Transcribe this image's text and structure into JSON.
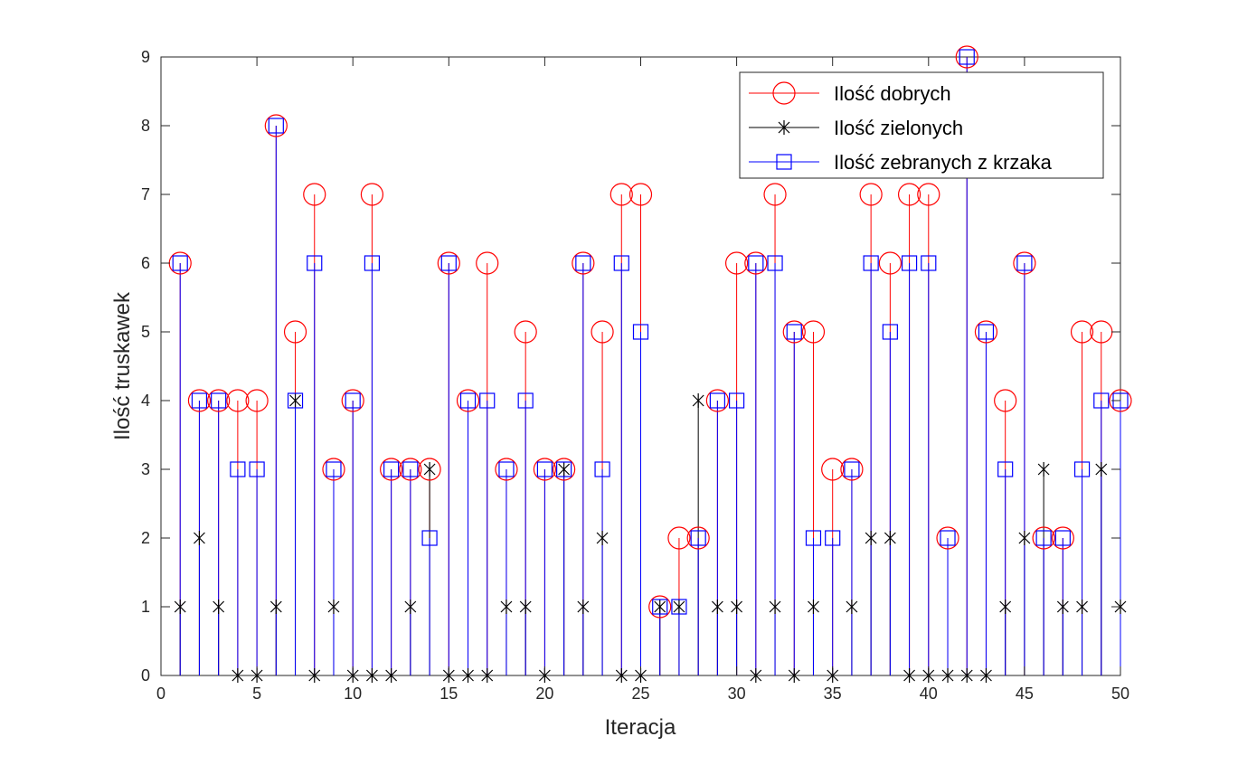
{
  "chart_data": {
    "type": "stem",
    "xlabel": "Iteracja",
    "ylabel": "Ilość truskawek",
    "xlim": [
      0,
      50
    ],
    "ylim": [
      0,
      9
    ],
    "xticks": [
      0,
      5,
      10,
      15,
      20,
      25,
      30,
      35,
      40,
      45,
      50
    ],
    "yticks": [
      0,
      1,
      2,
      3,
      4,
      5,
      6,
      7,
      8,
      9
    ],
    "grid": false,
    "legend_position": "top-right",
    "x": [
      1,
      2,
      3,
      4,
      5,
      6,
      7,
      8,
      9,
      10,
      11,
      12,
      13,
      14,
      15,
      16,
      17,
      18,
      19,
      20,
      21,
      22,
      23,
      24,
      25,
      26,
      27,
      28,
      29,
      30,
      31,
      32,
      33,
      34,
      35,
      36,
      37,
      38,
      39,
      40,
      41,
      42,
      43,
      44,
      45,
      46,
      47,
      48,
      49,
      50
    ],
    "series": [
      {
        "name": "Ilość dobrych",
        "color": "#ff0000",
        "marker": "circle",
        "values": [
          6,
          4,
          4,
          4,
          4,
          8,
          5,
          7,
          3,
          4,
          7,
          3,
          3,
          3,
          6,
          4,
          6,
          3,
          5,
          3,
          3,
          6,
          5,
          7,
          7,
          1,
          2,
          2,
          4,
          6,
          6,
          7,
          5,
          5,
          3,
          3,
          7,
          6,
          7,
          7,
          2,
          9,
          5,
          4,
          6,
          2,
          2,
          5,
          5,
          4
        ]
      },
      {
        "name": "Ilość zielonych",
        "color": "#000000",
        "marker": "asterisk",
        "values": [
          1,
          2,
          1,
          0,
          0,
          1,
          4,
          0,
          1,
          0,
          0,
          0,
          1,
          3,
          0,
          0,
          0,
          1,
          1,
          0,
          3,
          1,
          2,
          0,
          0,
          1,
          1,
          4,
          1,
          1,
          0,
          1,
          0,
          1,
          0,
          1,
          2,
          2,
          0,
          0,
          0,
          0,
          0,
          1,
          2,
          3,
          1,
          1,
          3,
          1
        ]
      },
      {
        "name": "Ilość zebranych z krzaka",
        "color": "#0000ff",
        "marker": "square",
        "values": [
          6,
          4,
          4,
          3,
          3,
          8,
          4,
          6,
          3,
          4,
          6,
          3,
          3,
          2,
          6,
          4,
          4,
          3,
          4,
          3,
          3,
          6,
          3,
          6,
          5,
          1,
          1,
          2,
          4,
          4,
          6,
          6,
          5,
          2,
          2,
          3,
          6,
          5,
          6,
          6,
          2,
          9,
          5,
          3,
          6,
          2,
          2,
          3,
          4,
          4
        ]
      }
    ]
  }
}
